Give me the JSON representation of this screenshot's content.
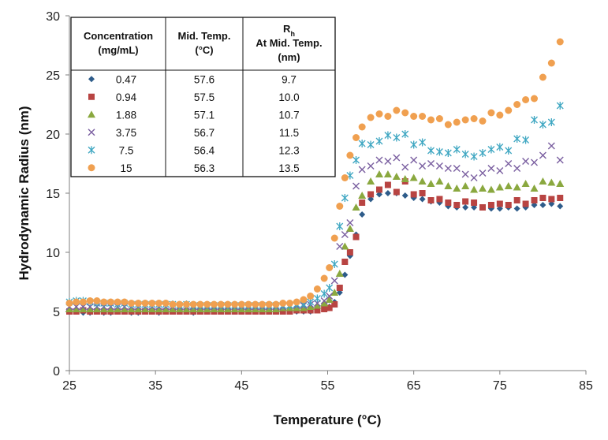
{
  "chart_data": {
    "type": "scatter",
    "title": "",
    "xlabel": "Temperature (°C)",
    "ylabel": "Hydrodynamic Radius (nm)",
    "xlim": [
      25,
      85
    ],
    "ylim": [
      0,
      30
    ],
    "xticks": [
      25,
      35,
      45,
      55,
      65,
      75,
      85
    ],
    "yticks": [
      0,
      5,
      10,
      15,
      20,
      25,
      30
    ],
    "xtick_labels": [
      "25",
      "35",
      "45",
      "55",
      "65",
      "75",
      "85"
    ],
    "ytick_labels": [
      "0",
      "5",
      "10",
      "15",
      "20",
      "25",
      "30"
    ],
    "legend_table": {
      "headers": [
        "Concentration (mg/mL)",
        "Mid. Temp. (°C)",
        "Rh At Mid. Temp. (nm)"
      ],
      "header_lines": [
        [
          "Concentration",
          "(mg/mL)"
        ],
        [
          "Mid. Temp.",
          "(°C)"
        ],
        [
          "R",
          "At Mid. Temp.",
          "(nm)"
        ]
      ],
      "rh_subscript": "h",
      "rows": [
        [
          "0.47",
          "57.6",
          "9.7"
        ],
        [
          "0.94",
          "57.5",
          "10.0"
        ],
        [
          "1.88",
          "57.1",
          "10.7"
        ],
        [
          "3.75",
          "56.7",
          "11.5"
        ],
        [
          "7.5",
          "56.4",
          "12.3"
        ],
        [
          "15",
          "56.3",
          "13.5"
        ]
      ]
    },
    "series": [
      {
        "name": "0.47 mg/mL",
        "marker": "diamond",
        "color": "#2E5C8A",
        "x": [
          25.0,
          25.8,
          26.6,
          27.4,
          28.2,
          29.0,
          29.8,
          30.6,
          31.4,
          32.2,
          33.0,
          33.8,
          34.6,
          35.4,
          36.2,
          37.0,
          37.8,
          38.6,
          39.4,
          40.2,
          41.0,
          41.8,
          42.6,
          43.4,
          44.2,
          45.0,
          45.8,
          46.6,
          47.4,
          48.2,
          49.0,
          49.8,
          50.6,
          51.4,
          52.2,
          53.0,
          53.8,
          54.6,
          55.2,
          55.8,
          56.4,
          57.0,
          57.6,
          58.3,
          59.0,
          60.0,
          61.0,
          62.0,
          63.0,
          64.0,
          65.0,
          66.0,
          67.0,
          68.0,
          69.0,
          70.0,
          71.0,
          72.0,
          73.0,
          74.0,
          75.0,
          76.0,
          77.0,
          78.0,
          79.0,
          80.0,
          81.0,
          82.0
        ],
        "y": [
          5.0,
          5.0,
          4.9,
          4.9,
          5.0,
          4.9,
          4.9,
          5.0,
          5.0,
          4.9,
          4.9,
          5.0,
          5.0,
          4.9,
          5.0,
          5.0,
          5.0,
          5.0,
          4.9,
          5.0,
          5.0,
          5.0,
          5.0,
          5.0,
          5.0,
          5.0,
          5.0,
          5.0,
          5.0,
          5.0,
          5.0,
          5.0,
          5.0,
          5.0,
          5.0,
          5.0,
          5.1,
          5.2,
          5.4,
          5.8,
          6.6,
          8.1,
          9.7,
          11.5,
          13.2,
          14.5,
          14.9,
          15.0,
          15.0,
          14.8,
          14.6,
          14.5,
          14.3,
          14.2,
          13.9,
          13.8,
          13.8,
          13.8,
          13.8,
          13.7,
          13.7,
          13.8,
          13.7,
          13.8,
          14.0,
          14.0,
          14.1,
          13.9
        ]
      },
      {
        "name": "0.94 mg/mL",
        "marker": "square",
        "color": "#B84442",
        "x": [
          25.0,
          25.8,
          26.6,
          27.4,
          28.2,
          29.0,
          29.8,
          30.6,
          31.4,
          32.2,
          33.0,
          33.8,
          34.6,
          35.4,
          36.2,
          37.0,
          37.8,
          38.6,
          39.4,
          40.2,
          41.0,
          41.8,
          42.6,
          43.4,
          44.2,
          45.0,
          45.8,
          46.6,
          47.4,
          48.2,
          49.0,
          49.8,
          50.6,
          51.4,
          52.2,
          53.0,
          53.8,
          54.6,
          55.2,
          55.8,
          56.4,
          57.0,
          57.6,
          58.3,
          59.0,
          60.0,
          61.0,
          62.0,
          63.0,
          64.0,
          65.0,
          66.0,
          67.0,
          68.0,
          69.0,
          70.0,
          71.0,
          72.0,
          73.0,
          74.0,
          75.0,
          76.0,
          77.0,
          78.0,
          79.0,
          80.0,
          81.0,
          82.0
        ],
        "y": [
          5.0,
          5.0,
          5.1,
          5.0,
          5.0,
          5.0,
          5.0,
          5.0,
          5.0,
          5.0,
          5.0,
          5.0,
          5.0,
          5.0,
          5.0,
          5.0,
          5.0,
          5.0,
          5.0,
          5.0,
          5.0,
          5.0,
          5.0,
          5.0,
          5.0,
          5.0,
          5.0,
          5.0,
          5.0,
          5.0,
          5.0,
          5.0,
          5.0,
          5.1,
          5.1,
          5.1,
          5.1,
          5.2,
          5.3,
          5.6,
          7.0,
          9.2,
          10.0,
          11.3,
          14.2,
          14.9,
          15.3,
          15.7,
          15.1,
          16.0,
          14.9,
          15.0,
          14.4,
          14.5,
          14.2,
          14.0,
          14.3,
          14.2,
          13.8,
          14.0,
          14.1,
          14.0,
          14.4,
          14.1,
          14.4,
          14.6,
          14.5,
          14.6
        ]
      },
      {
        "name": "1.88 mg/mL",
        "marker": "triangle",
        "color": "#8AA83F",
        "x": [
          25.0,
          25.8,
          26.6,
          27.4,
          28.2,
          29.0,
          29.8,
          30.6,
          31.4,
          32.2,
          33.0,
          33.8,
          34.6,
          35.4,
          36.2,
          37.0,
          37.8,
          38.6,
          39.4,
          40.2,
          41.0,
          41.8,
          42.6,
          43.4,
          44.2,
          45.0,
          45.8,
          46.6,
          47.4,
          48.2,
          49.0,
          49.8,
          50.6,
          51.4,
          52.2,
          53.0,
          53.8,
          54.6,
          55.2,
          55.8,
          56.4,
          57.0,
          57.6,
          58.3,
          59.0,
          60.0,
          61.0,
          62.0,
          63.0,
          64.0,
          65.0,
          66.0,
          67.0,
          68.0,
          69.0,
          70.0,
          71.0,
          72.0,
          73.0,
          74.0,
          75.0,
          76.0,
          77.0,
          78.0,
          79.0,
          80.0,
          81.0,
          82.0
        ],
        "y": [
          5.2,
          5.2,
          5.2,
          5.2,
          5.2,
          5.2,
          5.2,
          5.2,
          5.2,
          5.2,
          5.2,
          5.2,
          5.2,
          5.2,
          5.2,
          5.2,
          5.2,
          5.2,
          5.2,
          5.2,
          5.2,
          5.2,
          5.2,
          5.2,
          5.2,
          5.2,
          5.2,
          5.2,
          5.2,
          5.2,
          5.2,
          5.3,
          5.3,
          5.3,
          5.3,
          5.4,
          5.5,
          5.7,
          6.0,
          6.6,
          8.2,
          10.5,
          12.0,
          13.8,
          14.8,
          16.0,
          16.6,
          16.6,
          16.4,
          16.2,
          16.3,
          16.0,
          15.8,
          16.0,
          15.6,
          15.4,
          15.6,
          15.3,
          15.4,
          15.3,
          15.5,
          15.6,
          15.5,
          15.8,
          15.4,
          16.0,
          15.9,
          15.8
        ]
      },
      {
        "name": "3.75 mg/mL",
        "marker": "x",
        "color": "#7A5FA0",
        "x": [
          25.0,
          25.8,
          26.6,
          27.4,
          28.2,
          29.0,
          29.8,
          30.6,
          31.4,
          32.2,
          33.0,
          33.8,
          34.6,
          35.4,
          36.2,
          37.0,
          37.8,
          38.6,
          39.4,
          40.2,
          41.0,
          41.8,
          42.6,
          43.4,
          44.2,
          45.0,
          45.8,
          46.6,
          47.4,
          48.2,
          49.0,
          49.8,
          50.6,
          51.4,
          52.2,
          53.0,
          53.8,
          54.6,
          55.2,
          55.8,
          56.4,
          57.0,
          57.6,
          58.3,
          59.0,
          60.0,
          61.0,
          62.0,
          63.0,
          64.0,
          65.0,
          66.0,
          67.0,
          68.0,
          69.0,
          70.0,
          71.0,
          72.0,
          73.0,
          74.0,
          75.0,
          76.0,
          77.0,
          78.0,
          79.0,
          80.0,
          81.0,
          82.0
        ],
        "y": [
          5.4,
          5.4,
          5.4,
          5.4,
          5.4,
          5.4,
          5.4,
          5.4,
          5.4,
          5.4,
          5.4,
          5.4,
          5.4,
          5.4,
          5.4,
          5.4,
          5.4,
          5.4,
          5.4,
          5.4,
          5.4,
          5.4,
          5.4,
          5.4,
          5.4,
          5.4,
          5.4,
          5.4,
          5.4,
          5.4,
          5.4,
          5.4,
          5.5,
          5.5,
          5.5,
          5.6,
          5.7,
          5.9,
          6.3,
          7.6,
          10.5,
          11.5,
          12.5,
          15.6,
          17.0,
          17.3,
          17.8,
          17.7,
          18.0,
          17.2,
          17.8,
          17.3,
          17.5,
          17.3,
          17.1,
          17.1,
          16.6,
          16.3,
          16.7,
          17.1,
          16.9,
          17.5,
          17.1,
          17.7,
          17.6,
          18.2,
          19.0,
          17.8
        ]
      },
      {
        "name": "7.5 mg/mL",
        "marker": "asterisk",
        "color": "#3FA7C2",
        "x": [
          25.0,
          25.8,
          26.6,
          27.4,
          28.2,
          29.0,
          29.8,
          30.6,
          31.4,
          32.2,
          33.0,
          33.8,
          34.6,
          35.4,
          36.2,
          37.0,
          37.8,
          38.6,
          39.4,
          40.2,
          41.0,
          41.8,
          42.6,
          43.4,
          44.2,
          45.0,
          45.8,
          46.6,
          47.4,
          48.2,
          49.0,
          49.8,
          50.6,
          51.4,
          52.2,
          53.0,
          53.8,
          54.6,
          55.2,
          55.8,
          56.4,
          57.0,
          57.6,
          58.3,
          59.0,
          60.0,
          61.0,
          62.0,
          63.0,
          64.0,
          65.0,
          66.0,
          67.0,
          68.0,
          69.0,
          70.0,
          71.0,
          72.0,
          73.0,
          74.0,
          75.0,
          76.0,
          77.0,
          78.0,
          79.0,
          80.0,
          81.0,
          82.0
        ],
        "y": [
          5.8,
          5.9,
          5.9,
          5.8,
          5.7,
          5.7,
          5.7,
          5.6,
          5.7,
          5.6,
          5.6,
          5.6,
          5.6,
          5.6,
          5.6,
          5.6,
          5.5,
          5.6,
          5.5,
          5.5,
          5.5,
          5.5,
          5.5,
          5.5,
          5.5,
          5.5,
          5.5,
          5.5,
          5.5,
          5.5,
          5.5,
          5.5,
          5.5,
          5.6,
          5.6,
          5.8,
          6.1,
          6.5,
          7.0,
          9.0,
          12.2,
          14.6,
          16.5,
          17.8,
          19.2,
          19.1,
          19.4,
          19.9,
          19.7,
          20.0,
          19.1,
          19.3,
          18.6,
          18.5,
          18.4,
          18.7,
          18.3,
          18.1,
          18.4,
          18.7,
          18.9,
          18.6,
          19.6,
          19.5,
          21.2,
          20.8,
          21.0,
          22.4
        ]
      },
      {
        "name": "15 mg/mL",
        "marker": "circle",
        "color": "#F0A050",
        "x": [
          25.0,
          25.8,
          26.6,
          27.4,
          28.2,
          29.0,
          29.8,
          30.6,
          31.4,
          32.2,
          33.0,
          33.8,
          34.6,
          35.4,
          36.2,
          37.0,
          37.8,
          38.6,
          39.4,
          40.2,
          41.0,
          41.8,
          42.6,
          43.4,
          44.2,
          45.0,
          45.8,
          46.6,
          47.4,
          48.2,
          49.0,
          49.8,
          50.6,
          51.4,
          52.2,
          53.0,
          53.8,
          54.6,
          55.2,
          55.8,
          56.4,
          57.0,
          57.6,
          58.3,
          59.0,
          60.0,
          61.0,
          62.0,
          63.0,
          64.0,
          65.0,
          66.0,
          67.0,
          68.0,
          69.0,
          70.0,
          71.0,
          72.0,
          73.0,
          74.0,
          75.0,
          76.0,
          77.0,
          78.0,
          79.0,
          80.0,
          81.0,
          82.0
        ],
        "y": [
          5.7,
          5.8,
          5.8,
          5.9,
          5.9,
          5.8,
          5.8,
          5.8,
          5.8,
          5.7,
          5.7,
          5.7,
          5.7,
          5.7,
          5.7,
          5.6,
          5.6,
          5.6,
          5.6,
          5.6,
          5.6,
          5.6,
          5.6,
          5.6,
          5.6,
          5.6,
          5.6,
          5.6,
          5.6,
          5.6,
          5.6,
          5.7,
          5.7,
          5.8,
          6.0,
          6.3,
          6.9,
          7.8,
          8.7,
          11.2,
          13.9,
          16.3,
          18.2,
          19.7,
          20.6,
          21.4,
          21.7,
          21.5,
          22.0,
          21.8,
          21.5,
          21.5,
          21.2,
          21.3,
          20.8,
          21.0,
          21.2,
          21.3,
          21.1,
          21.8,
          21.6,
          22.0,
          22.5,
          22.9,
          23.0,
          24.8,
          26.0,
          27.8
        ]
      }
    ]
  }
}
